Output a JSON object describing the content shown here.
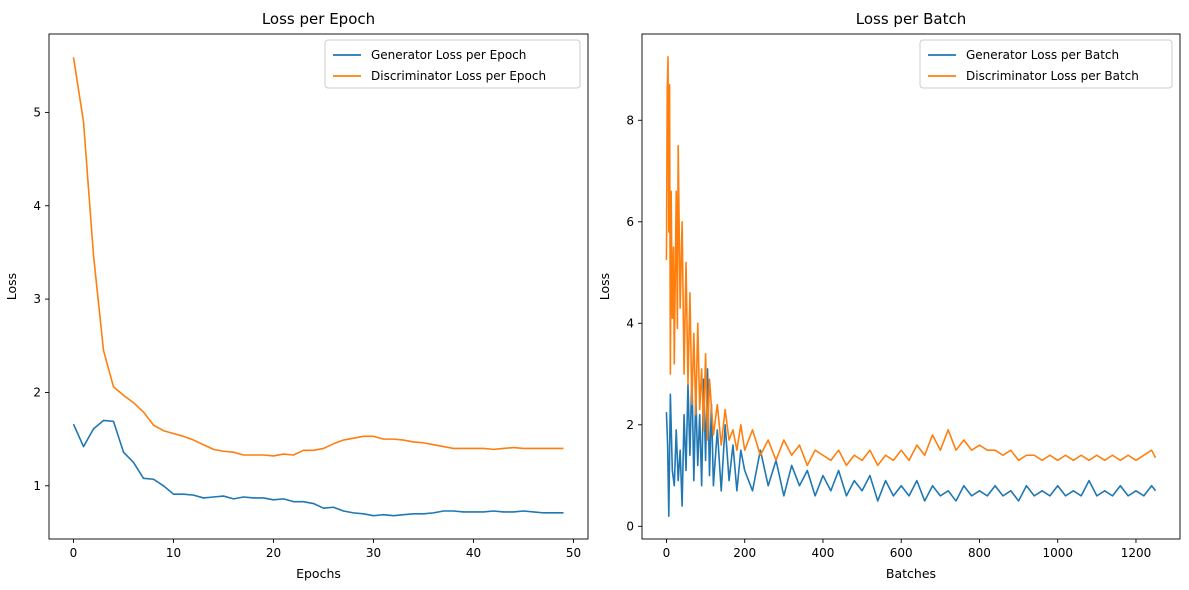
{
  "chart_data": [
    {
      "type": "line",
      "title": "Loss per Epoch",
      "xlabel": "Epochs",
      "ylabel": "Loss",
      "xlim": [
        -2.45,
        51.45
      ],
      "ylim": [
        0.43,
        5.84
      ],
      "xticks": [
        0,
        10,
        20,
        30,
        40,
        50
      ],
      "yticks": [
        1,
        2,
        3,
        4,
        5
      ],
      "xtick_labels": [
        "0",
        "10",
        "20",
        "30",
        "40",
        "50"
      ],
      "ytick_labels": [
        "1",
        "2",
        "3",
        "4",
        "5"
      ],
      "legend_position": "upper-right",
      "series": [
        {
          "name": "Generator Loss per Epoch",
          "color": "#1f77b4",
          "x": [
            0,
            1,
            2,
            3,
            4,
            5,
            6,
            7,
            8,
            9,
            10,
            11,
            12,
            13,
            14,
            15,
            16,
            17,
            18,
            19,
            20,
            21,
            22,
            23,
            24,
            25,
            26,
            27,
            28,
            29,
            30,
            31,
            32,
            33,
            34,
            35,
            36,
            37,
            38,
            39,
            40,
            41,
            42,
            43,
            44,
            45,
            46,
            47,
            48,
            49
          ],
          "values": [
            1.66,
            1.42,
            1.61,
            1.7,
            1.69,
            1.36,
            1.25,
            1.08,
            1.07,
            1.0,
            0.91,
            0.91,
            0.9,
            0.87,
            0.88,
            0.89,
            0.86,
            0.88,
            0.87,
            0.87,
            0.85,
            0.86,
            0.83,
            0.83,
            0.81,
            0.76,
            0.77,
            0.73,
            0.71,
            0.7,
            0.68,
            0.69,
            0.68,
            0.69,
            0.7,
            0.7,
            0.71,
            0.73,
            0.73,
            0.72,
            0.72,
            0.72,
            0.73,
            0.72,
            0.72,
            0.73,
            0.72,
            0.71,
            0.71,
            0.71
          ]
        },
        {
          "name": "Discriminator Loss per Epoch",
          "color": "#ff7f0e",
          "x": [
            0,
            1,
            2,
            3,
            4,
            5,
            6,
            7,
            8,
            9,
            10,
            11,
            12,
            13,
            14,
            15,
            16,
            17,
            18,
            19,
            20,
            21,
            22,
            23,
            24,
            25,
            26,
            27,
            28,
            29,
            30,
            31,
            32,
            33,
            34,
            35,
            36,
            37,
            38,
            39,
            40,
            41,
            42,
            43,
            44,
            45,
            46,
            47,
            48,
            49
          ],
          "values": [
            5.59,
            4.9,
            3.47,
            2.45,
            2.06,
            1.97,
            1.89,
            1.79,
            1.65,
            1.59,
            1.56,
            1.53,
            1.49,
            1.44,
            1.39,
            1.37,
            1.36,
            1.33,
            1.33,
            1.33,
            1.32,
            1.34,
            1.33,
            1.38,
            1.38,
            1.4,
            1.45,
            1.49,
            1.51,
            1.53,
            1.53,
            1.5,
            1.5,
            1.49,
            1.47,
            1.46,
            1.44,
            1.42,
            1.4,
            1.4,
            1.4,
            1.4,
            1.39,
            1.4,
            1.41,
            1.4,
            1.4,
            1.4,
            1.4,
            1.4
          ]
        }
      ]
    },
    {
      "type": "line",
      "title": "Loss per Batch",
      "xlabel": "Batches",
      "ylabel": "Loss",
      "xlim": [
        -62.5,
        1312.5
      ],
      "ylim": [
        -0.25,
        9.7
      ],
      "xticks": [
        0,
        200,
        400,
        600,
        800,
        1000,
        1200
      ],
      "yticks": [
        0,
        2,
        4,
        6,
        8
      ],
      "xtick_labels": [
        "0",
        "200",
        "400",
        "600",
        "800",
        "1000",
        "1200"
      ],
      "ytick_labels": [
        "0",
        "2",
        "4",
        "6",
        "8"
      ],
      "legend_position": "upper-right",
      "series": [
        {
          "name": "Generator Loss per Batch",
          "color": "#1f77b4",
          "x": [
            0,
            3,
            6,
            10,
            15,
            20,
            25,
            30,
            35,
            40,
            45,
            50,
            55,
            60,
            65,
            70,
            75,
            80,
            85,
            90,
            95,
            100,
            105,
            110,
            115,
            120,
            130,
            140,
            150,
            160,
            170,
            180,
            190,
            200,
            220,
            240,
            260,
            280,
            300,
            320,
            340,
            360,
            380,
            400,
            420,
            440,
            460,
            480,
            500,
            520,
            540,
            560,
            580,
            600,
            620,
            640,
            660,
            680,
            700,
            720,
            740,
            760,
            780,
            800,
            820,
            840,
            860,
            880,
            900,
            920,
            940,
            960,
            980,
            1000,
            1020,
            1040,
            1060,
            1080,
            1100,
            1120,
            1140,
            1160,
            1180,
            1200,
            1220,
            1240,
            1250
          ],
          "values": [
            2.25,
            1.6,
            0.2,
            2.6,
            1.1,
            0.8,
            1.9,
            0.9,
            1.5,
            0.4,
            2.2,
            1.1,
            2.8,
            1.4,
            3.0,
            0.9,
            2.6,
            1.2,
            2.2,
            0.8,
            2.9,
            1.3,
            3.1,
            1.0,
            2.4,
            0.8,
            1.9,
            0.7,
            2.0,
            0.9,
            1.6,
            0.7,
            1.5,
            1.1,
            0.7,
            1.5,
            0.8,
            1.3,
            0.6,
            1.2,
            0.8,
            1.1,
            0.6,
            1.0,
            0.7,
            1.1,
            0.6,
            0.9,
            0.7,
            1.0,
            0.5,
            0.9,
            0.6,
            0.8,
            0.6,
            0.9,
            0.5,
            0.8,
            0.6,
            0.7,
            0.5,
            0.8,
            0.6,
            0.7,
            0.6,
            0.8,
            0.6,
            0.7,
            0.5,
            0.8,
            0.6,
            0.7,
            0.6,
            0.8,
            0.6,
            0.7,
            0.6,
            0.9,
            0.6,
            0.7,
            0.6,
            0.8,
            0.6,
            0.7,
            0.6,
            0.8,
            0.7
          ]
        },
        {
          "name": "Discriminator Loss per Batch",
          "color": "#ff7f0e",
          "x": [
            0,
            2,
            4,
            6,
            8,
            10,
            12,
            15,
            18,
            20,
            25,
            28,
            30,
            35,
            40,
            45,
            50,
            55,
            60,
            65,
            70,
            75,
            80,
            85,
            90,
            95,
            100,
            105,
            110,
            120,
            130,
            140,
            150,
            160,
            170,
            180,
            190,
            200,
            220,
            240,
            260,
            280,
            300,
            320,
            340,
            360,
            380,
            400,
            420,
            440,
            460,
            480,
            500,
            520,
            540,
            560,
            580,
            600,
            620,
            640,
            660,
            680,
            700,
            720,
            740,
            760,
            780,
            800,
            820,
            840,
            860,
            880,
            900,
            920,
            940,
            960,
            980,
            1000,
            1020,
            1040,
            1060,
            1080,
            1100,
            1120,
            1140,
            1160,
            1180,
            1200,
            1220,
            1240,
            1250
          ],
          "values": [
            5.25,
            8.6,
            9.25,
            5.8,
            8.7,
            3.0,
            6.6,
            4.1,
            5.5,
            3.2,
            6.6,
            3.9,
            7.5,
            4.3,
            6.0,
            3.0,
            5.2,
            2.8,
            4.6,
            2.4,
            3.8,
            2.2,
            4.0,
            2.3,
            3.1,
            1.9,
            3.4,
            1.7,
            2.9,
            1.8,
            2.4,
            1.6,
            2.3,
            1.7,
            1.9,
            1.5,
            2.0,
            1.5,
            1.9,
            1.4,
            1.7,
            1.3,
            1.7,
            1.4,
            1.6,
            1.2,
            1.5,
            1.4,
            1.3,
            1.5,
            1.2,
            1.4,
            1.3,
            1.5,
            1.2,
            1.4,
            1.3,
            1.5,
            1.3,
            1.6,
            1.4,
            1.8,
            1.5,
            1.9,
            1.5,
            1.7,
            1.5,
            1.6,
            1.5,
            1.5,
            1.4,
            1.5,
            1.3,
            1.4,
            1.4,
            1.3,
            1.4,
            1.3,
            1.4,
            1.3,
            1.4,
            1.3,
            1.4,
            1.3,
            1.4,
            1.3,
            1.4,
            1.3,
            1.4,
            1.5,
            1.35
          ]
        }
      ]
    }
  ]
}
